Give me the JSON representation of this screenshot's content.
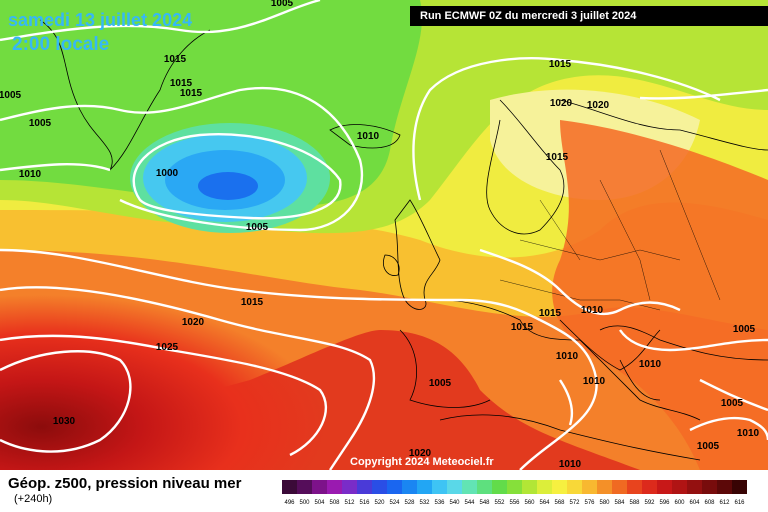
{
  "header": {
    "date": "samedi 13 juillet 2024",
    "time": "2:00 locale",
    "run": "Run ECMWF 0Z du mercredi 3 juillet 2024"
  },
  "footer": {
    "copyright": "Copyright 2024 Meteociel.fr",
    "legend_title": "Géop. z500, pression niveau mer",
    "legend_sub": "(+240h)"
  },
  "colorbar": {
    "ticks": [
      "496",
      "500",
      "504",
      "508",
      "512",
      "516",
      "520",
      "524",
      "528",
      "532",
      "536",
      "540",
      "544",
      "548",
      "552",
      "556",
      "560",
      "564",
      "568",
      "572",
      "576",
      "580",
      "584",
      "588",
      "592",
      "596",
      "600",
      "604",
      "608",
      "612",
      "616"
    ],
    "colors": [
      "#3b0a38",
      "#550d5a",
      "#7d128a",
      "#9a1ab0",
      "#7a2cc8",
      "#4a3ad8",
      "#2a4ee6",
      "#1a66f0",
      "#1a86f2",
      "#22a6f4",
      "#3ec4f4",
      "#5ad8e8",
      "#62e4b4",
      "#5ee07e",
      "#62dc4a",
      "#86e03a",
      "#b2e636",
      "#dcee3a",
      "#f6f040",
      "#f8d838",
      "#f8b830",
      "#f49028",
      "#f06a22",
      "#e8441e",
      "#dc2a1c",
      "#c81818",
      "#b01414",
      "#941010",
      "#780c0c",
      "#5c0808",
      "#380404"
    ]
  },
  "isobars": [
    {
      "label": "1005"
    },
    {
      "label": "1015"
    },
    {
      "label": "1015"
    },
    {
      "label": "1015"
    },
    {
      "label": "1005"
    },
    {
      "label": "1005"
    },
    {
      "label": "1010"
    },
    {
      "label": "1000"
    },
    {
      "label": "1010"
    },
    {
      "label": "1005"
    },
    {
      "label": "1015"
    },
    {
      "label": "1020"
    },
    {
      "label": "1020"
    },
    {
      "label": "1015"
    },
    {
      "label": "1015"
    },
    {
      "label": "1020"
    },
    {
      "label": "1025"
    },
    {
      "label": "1030"
    },
    {
      "label": "1015"
    },
    {
      "label": "1015"
    },
    {
      "label": "1010"
    },
    {
      "label": "1010"
    },
    {
      "label": "1010"
    },
    {
      "label": "1010"
    },
    {
      "label": "1005"
    },
    {
      "label": "1005"
    },
    {
      "label": "1005"
    },
    {
      "label": "1005"
    },
    {
      "label": "1010"
    },
    {
      "label": "1010"
    },
    {
      "label": "1020"
    }
  ]
}
